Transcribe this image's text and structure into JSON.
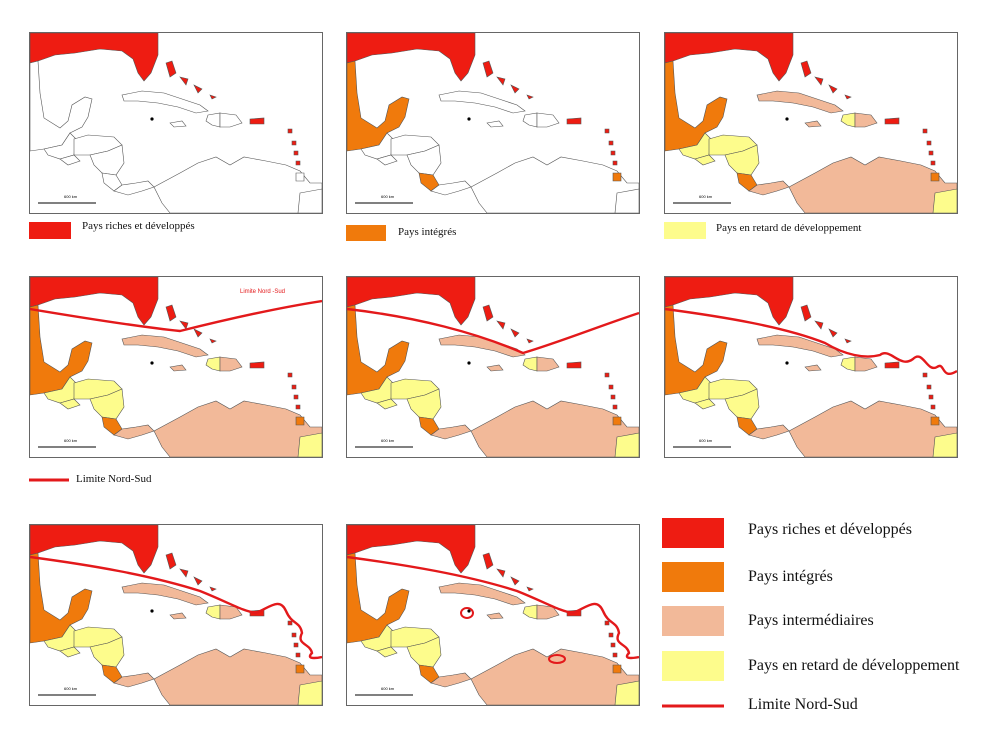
{
  "colors": {
    "riches": "#ee1c12",
    "integres": "#f07a0c",
    "intermediaires": "#f2b999",
    "retard": "#fdfc8c",
    "limite": "#e3191b",
    "outline": "#555555"
  },
  "scale_label": "600 km",
  "panel_legends": [
    {
      "label": "Pays riches et développés",
      "color_key": "riches"
    },
    {
      "label": "Pays intégrés",
      "color_key": "integres"
    },
    {
      "label": "Pays en retard de développement",
      "color_key": "retard"
    }
  ],
  "limit_legend": {
    "label": "Limite Nord-Sud"
  },
  "map_inline_label": "Limite Nord -Sud",
  "main_legend": [
    {
      "label": "Pays riches et développés",
      "color_key": "riches"
    },
    {
      "label": "Pays intégrés",
      "color_key": "integres"
    },
    {
      "label": "Pays intermédiaires",
      "color_key": "intermediaires"
    },
    {
      "label": "Pays en retard de développement",
      "color_key": "retard"
    },
    {
      "label": "Limite Nord-Sud",
      "color_key": "limite"
    }
  ],
  "panels": [
    {
      "id": 1,
      "fills": [
        "riches"
      ],
      "limit": "none"
    },
    {
      "id": 2,
      "fills": [
        "riches",
        "integres"
      ],
      "limit": "none"
    },
    {
      "id": 3,
      "fills": [
        "riches",
        "integres",
        "intermediaires",
        "retard"
      ],
      "limit": "none"
    },
    {
      "id": 4,
      "fills": [
        "riches",
        "integres",
        "intermediaires",
        "retard"
      ],
      "limit": "straight"
    },
    {
      "id": 5,
      "fills": [
        "riches",
        "integres",
        "intermediaires",
        "retard"
      ],
      "limit": "angled"
    },
    {
      "id": 6,
      "fills": [
        "riches",
        "integres",
        "intermediaires",
        "retard"
      ],
      "limit": "wavy"
    },
    {
      "id": 7,
      "fills": [
        "riches",
        "integres",
        "intermediaires",
        "retard"
      ],
      "limit": "wavy-long"
    },
    {
      "id": 8,
      "fills": [
        "riches",
        "integres",
        "intermediaires",
        "retard"
      ],
      "limit": "wavy-loops"
    }
  ]
}
